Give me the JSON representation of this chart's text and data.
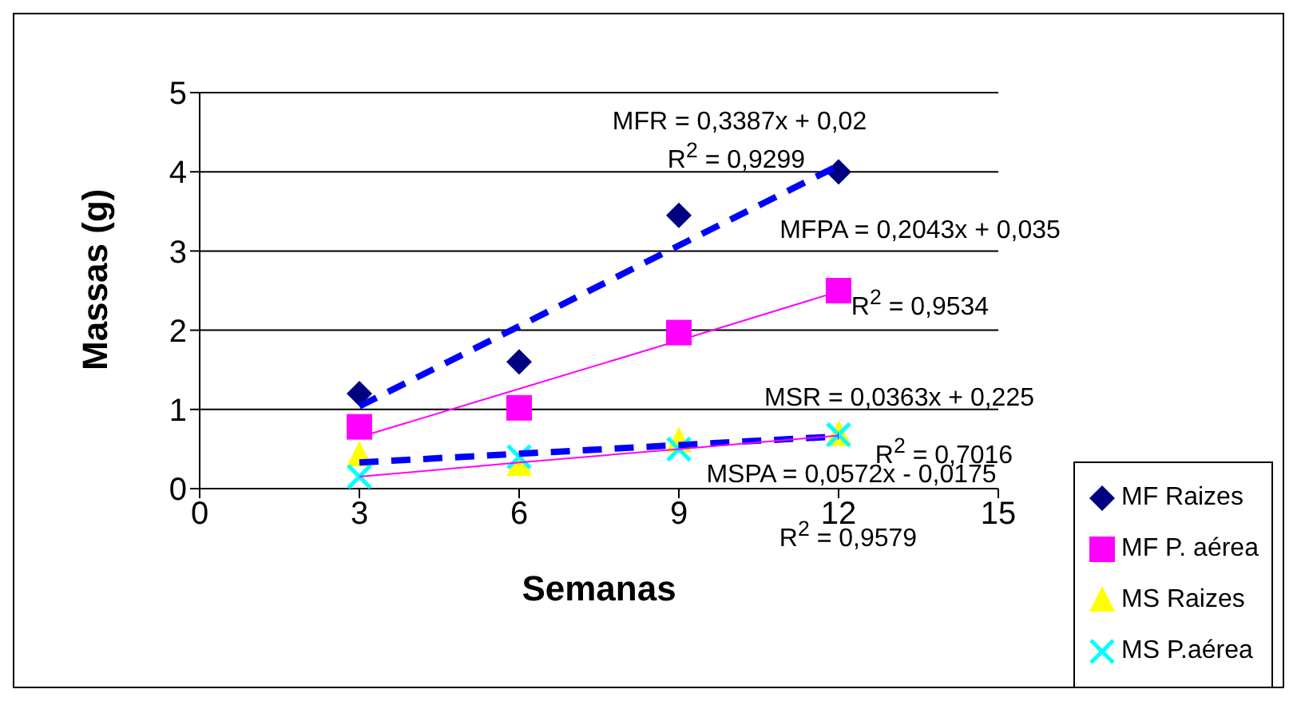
{
  "chart_data": {
    "type": "scatter",
    "xlabel": "Semanas",
    "ylabel": "Massas (g)",
    "xlim": [
      0,
      15
    ],
    "xticks": [
      0,
      3,
      6,
      9,
      12,
      15
    ],
    "ylim": [
      0,
      5
    ],
    "yticks": [
      0,
      1,
      2,
      3,
      4,
      5
    ],
    "grid": "y",
    "legend": "right",
    "x": [
      3,
      6,
      9,
      12
    ],
    "series": [
      {
        "name": "MF Raizes",
        "color": "#000080",
        "marker": "diamond",
        "values": [
          1.2,
          1.6,
          3.45,
          4.0
        ]
      },
      {
        "name": "MF P. aérea",
        "color": "#ff00ff",
        "marker": "square",
        "values": [
          0.78,
          1.02,
          1.97,
          2.5
        ]
      },
      {
        "name": "MS Raizes",
        "color": "#ffff00",
        "marker": "triangle",
        "values": [
          0.42,
          0.3,
          0.6,
          0.68
        ]
      },
      {
        "name": "MS P.aérea",
        "color": "#00ffff",
        "marker": "cross",
        "values": [
          0.15,
          0.4,
          0.5,
          0.68
        ]
      },
      {
        "type": "line",
        "color": "#0000ff",
        "line_style": "dashed",
        "marker": "none",
        "values": [
          1.04,
          2.05,
          3.07,
          4.08
        ]
      },
      {
        "type": "line",
        "color": "#ff00ff",
        "line_style": "solid",
        "marker": "none",
        "values": [
          0.65,
          1.26,
          1.87,
          2.49
        ]
      },
      {
        "type": "line",
        "color": "#0000ff",
        "line_style": "dashed",
        "marker": "none",
        "values": [
          0.33,
          0.44,
          0.55,
          0.66
        ]
      },
      {
        "type": "line",
        "color": "#ff00ff",
        "line_style": "solid",
        "marker": "none",
        "values": [
          0.15,
          0.33,
          0.5,
          0.67
        ]
      }
    ],
    "annotations": [
      "MFR = 0,3387x + 0,02",
      "R$^{2}$ = 0,9299",
      "MFPA = 0,2043x + 0,035",
      "R$^{2}$ = 0,9534",
      "MSR = 0,0363x + 0,225",
      "R$^{2}$ = 0,7016",
      "MSPA = 0,0572x - 0,0175",
      "R$^{2}$ = 0,9579"
    ]
  }
}
